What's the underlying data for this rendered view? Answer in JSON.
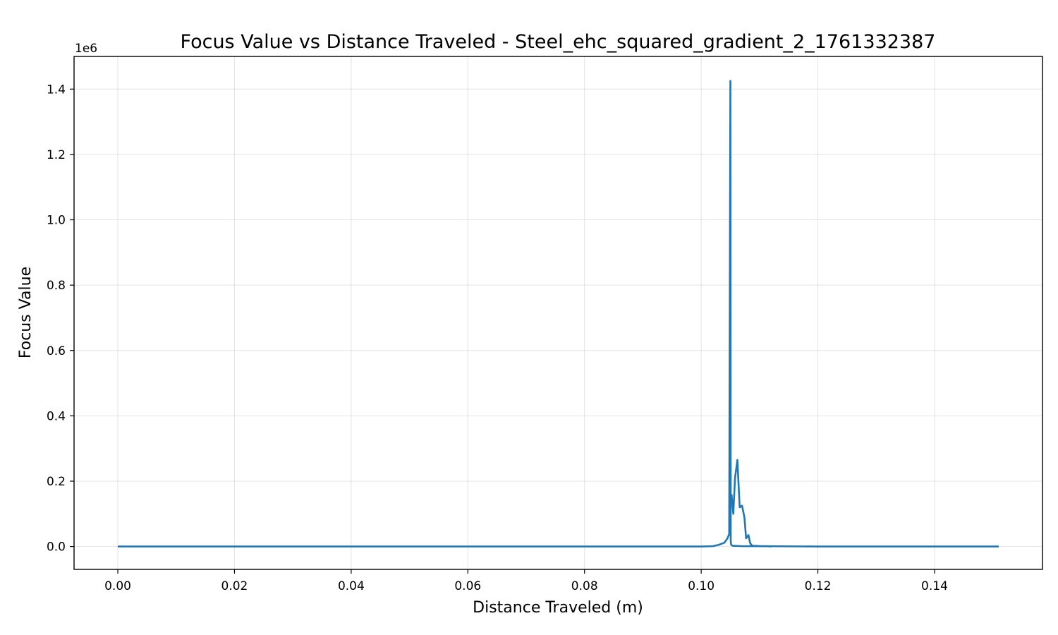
{
  "chart_data": {
    "type": "line",
    "title": "Focus Value vs Distance Traveled - Steel_ehc_squared_gradient_2_1761332387",
    "xlabel": "Distance Traveled (m)",
    "ylabel": "Focus Value",
    "y_offset_label": "1e6",
    "xlim": [
      -0.0075,
      0.1585
    ],
    "ylim": [
      -0.07,
      1.5
    ],
    "x_ticks": [
      0.0,
      0.02,
      0.04,
      0.06,
      0.08,
      0.1,
      0.12,
      0.14
    ],
    "x_tick_labels": [
      "0.00",
      "0.02",
      "0.04",
      "0.06",
      "0.08",
      "0.10",
      "0.12",
      "0.14"
    ],
    "y_ticks": [
      0.0,
      0.2,
      0.4,
      0.6,
      0.8,
      1.0,
      1.2,
      1.4
    ],
    "y_tick_labels": [
      "0.0",
      "0.2",
      "0.4",
      "0.6",
      "0.8",
      "1.0",
      "1.2",
      "1.4"
    ],
    "grid": true,
    "legend": "none",
    "color": "#1f77b4",
    "series": [
      {
        "x": [
          0.0,
          0.02,
          0.04,
          0.06,
          0.08,
          0.1,
          0.102,
          0.103,
          0.104,
          0.1045,
          0.1048,
          0.105,
          0.10503,
          0.10506,
          0.1051,
          0.1052,
          0.1053,
          0.1054,
          0.1055,
          0.106,
          0.107,
          0.109,
          0.111,
          0.12,
          0.14,
          0.151
        ],
        "y": [
          0.0,
          0.0,
          0.0,
          0.0,
          0.0,
          0.0,
          0.001,
          0.005,
          0.012,
          0.025,
          0.038,
          1.425,
          0.84,
          0.02,
          0.008,
          0.004,
          0.003,
          0.003,
          0.002,
          0.002,
          0.001,
          0.001,
          0.001,
          0.0,
          0.0,
          0.0
        ]
      },
      {
        "x": [
          0.1052,
          0.1055,
          0.1058,
          0.1062,
          0.1066,
          0.107,
          0.1074,
          0.1077,
          0.1081,
          0.1084,
          0.1087,
          0.109,
          0.1095,
          0.1103,
          0.1112,
          0.112
        ],
        "y": [
          0.16,
          0.1,
          0.21,
          0.265,
          0.12,
          0.125,
          0.09,
          0.025,
          0.035,
          0.01,
          0.003,
          0.002,
          0.002,
          0.001,
          0.001,
          0.0
        ]
      }
    ]
  }
}
